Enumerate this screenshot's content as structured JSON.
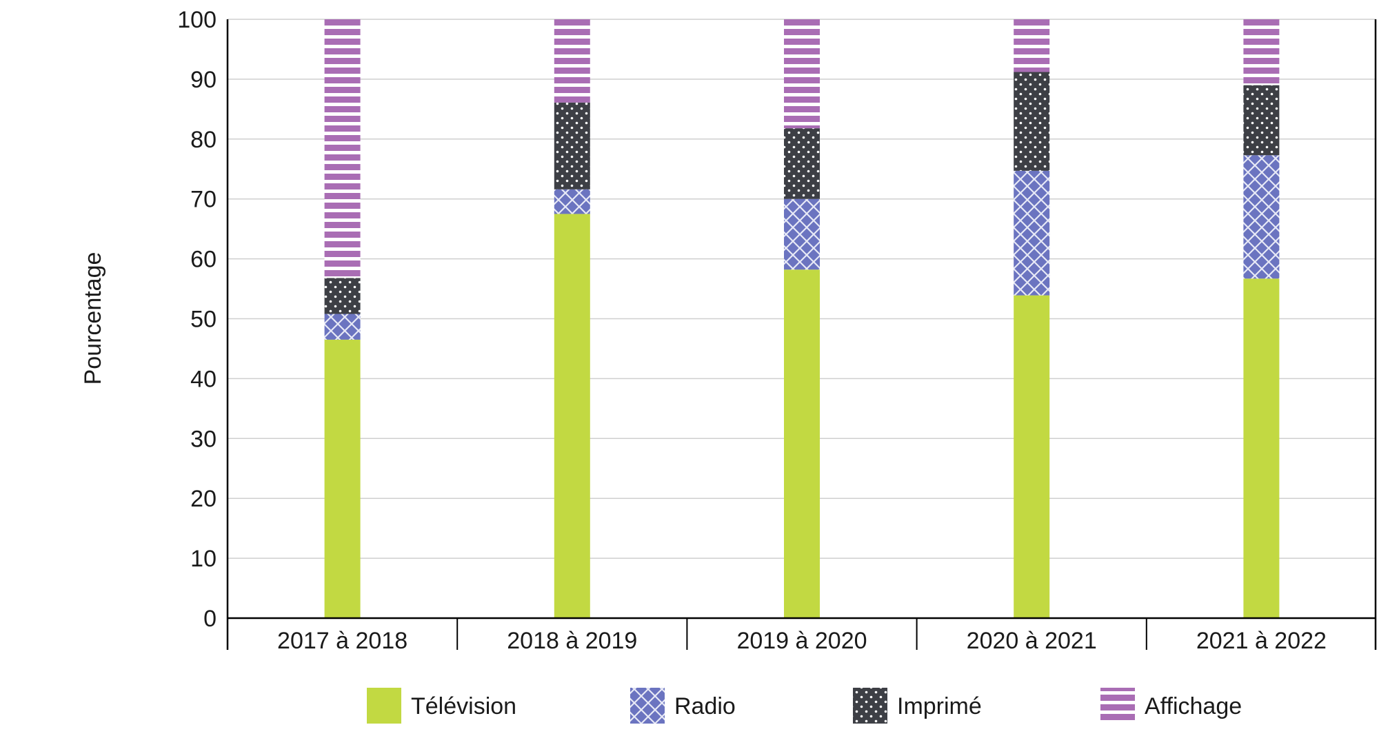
{
  "chart_data": {
    "type": "bar",
    "stacked": true,
    "title": "",
    "xlabel": "",
    "ylabel": "Pourcentage",
    "ylim": [
      0,
      100
    ],
    "yticks": [
      0,
      10,
      20,
      30,
      40,
      50,
      60,
      70,
      80,
      90,
      100
    ],
    "grid": true,
    "legend_position": "bottom",
    "categories": [
      "2017 à 2018",
      "2018 à 2019",
      "2019 à 2020",
      "2020 à 2021",
      "2021 à 2022"
    ],
    "series": [
      {
        "name": "Télévision",
        "color": "#c2d942",
        "pattern": "solid",
        "values": [
          46.5,
          67.5,
          58.2,
          53.9,
          56.7
        ]
      },
      {
        "name": "Radio",
        "color": "#6b74c0",
        "pattern": "crosshatch",
        "values": [
          4.3,
          4.1,
          11.8,
          20.8,
          20.6
        ]
      },
      {
        "name": "Imprimé",
        "color": "#3d3f45",
        "pattern": "dots",
        "values": [
          6.0,
          14.5,
          11.8,
          16.5,
          11.7
        ]
      },
      {
        "name": "Affichage",
        "color": "#a96db4",
        "pattern": "stripes",
        "values": [
          43.2,
          13.9,
          18.2,
          8.8,
          11.0
        ]
      }
    ]
  }
}
